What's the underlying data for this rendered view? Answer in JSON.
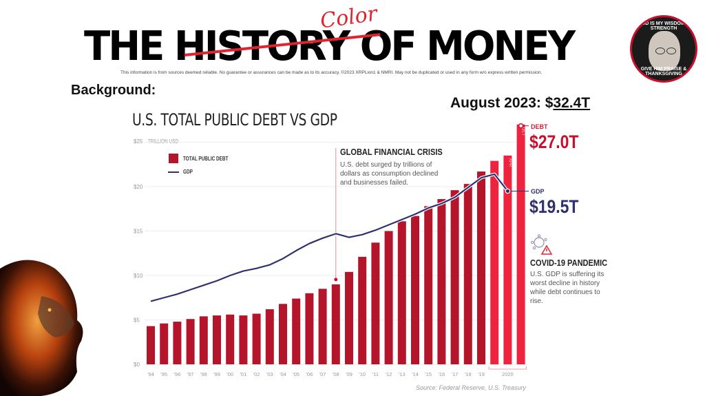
{
  "header": {
    "title_part1": "THE ",
    "title_struck": "HISTORY",
    "title_part2": " OF MONEY",
    "overlay_word": "Color",
    "disclaimer": "This information is from sources deemed reliable. No guarantee or assurances can be made as to its accuracy. ©2023 XRPLion1 & NMRI. May not be duplicated or used in any form w/o express written permission.",
    "badge_top_text": "GOD IS MY WISDOM & STRENGTH",
    "badge_bottom_text": "GIVE HIM PRAISE & THANKSGIVING"
  },
  "background_label": "Background:",
  "august_label_prefix": "August 2023: $",
  "august_label_value": "32.4T",
  "annotations": {
    "gfc_title": "GLOBAL FINANCIAL CRISIS",
    "gfc_body": "U.S. debt surged by trillions of dollars as consumption declined and businesses failed.",
    "covid_title": "COVID-19 PANDEMIC",
    "covid_body": "U.S. GDP is suffering its worst decline in history while debt continues to rise.",
    "debt_tag": "DEBT",
    "debt_value": "$27.0T",
    "gdp_tag": "GDP",
    "gdp_value": "$19.5T",
    "source": "Source: Federal Reserve, U.S. Treasury"
  },
  "colors": {
    "debt_bar": "#b5152b",
    "debt_bar_2020": "#f0233f",
    "gdp_line": "#2e3070",
    "title_strike": "#e0242f"
  },
  "chart_data": {
    "type": "bar",
    "title": "U.S. TOTAL PUBLIC DEBT VS GDP",
    "ylabel": "TRILLION USD",
    "xlabel": "",
    "ylim": [
      0,
      25
    ],
    "yticks": [
      0,
      5,
      10,
      15,
      20,
      25
    ],
    "ytick_labels": [
      "$0",
      "$5",
      "$10",
      "$15",
      "$20",
      "$25"
    ],
    "grid": true,
    "legend": {
      "position": "top-left",
      "entries": [
        "TOTAL PUBLIC DEBT",
        "GDP"
      ]
    },
    "categories": [
      "'94",
      "'95",
      "'96",
      "'97",
      "'98",
      "'99",
      "'00",
      "'01",
      "'02",
      "'03",
      "'04",
      "'05",
      "'06",
      "'07",
      "'08",
      "'09",
      "'10",
      "'11",
      "'12",
      "'13",
      "'14",
      "'15",
      "'16",
      "'17",
      "'18",
      "'19",
      "JAN",
      "APR",
      "OCT"
    ],
    "x_tick_labels": [
      "'94",
      "'95",
      "'96",
      "'97",
      "'98",
      "'99",
      "'00",
      "'01",
      "'02",
      "'03",
      "'04",
      "'05",
      "'06",
      "'07",
      "'08",
      "'09",
      "'10",
      "'11",
      "'12",
      "'13",
      "'14",
      "'15",
      "'16",
      "'17",
      "'18",
      "'19"
    ],
    "group_label_2020": "2020",
    "bar_inner_labels": {
      "27": "APR",
      "28": "OCT"
    },
    "series": [
      {
        "name": "TOTAL PUBLIC DEBT",
        "type": "bar",
        "values": [
          4.3,
          4.6,
          4.8,
          5.1,
          5.4,
          5.5,
          5.6,
          5.5,
          5.7,
          6.2,
          6.8,
          7.4,
          8.0,
          8.5,
          9.0,
          10.4,
          12.1,
          13.7,
          15.0,
          16.1,
          16.7,
          17.8,
          18.6,
          19.6,
          20.3,
          21.7,
          22.9,
          23.5,
          27.0
        ]
      },
      {
        "name": "GDP",
        "type": "line",
        "values": [
          7.1,
          7.5,
          7.9,
          8.4,
          8.9,
          9.4,
          10.0,
          10.5,
          10.8,
          11.2,
          11.9,
          12.8,
          13.6,
          14.2,
          14.7,
          14.3,
          14.6,
          15.1,
          15.7,
          16.3,
          16.9,
          17.6,
          18.1,
          18.8,
          19.9,
          21.0,
          21.4,
          19.5,
          null
        ]
      }
    ]
  }
}
